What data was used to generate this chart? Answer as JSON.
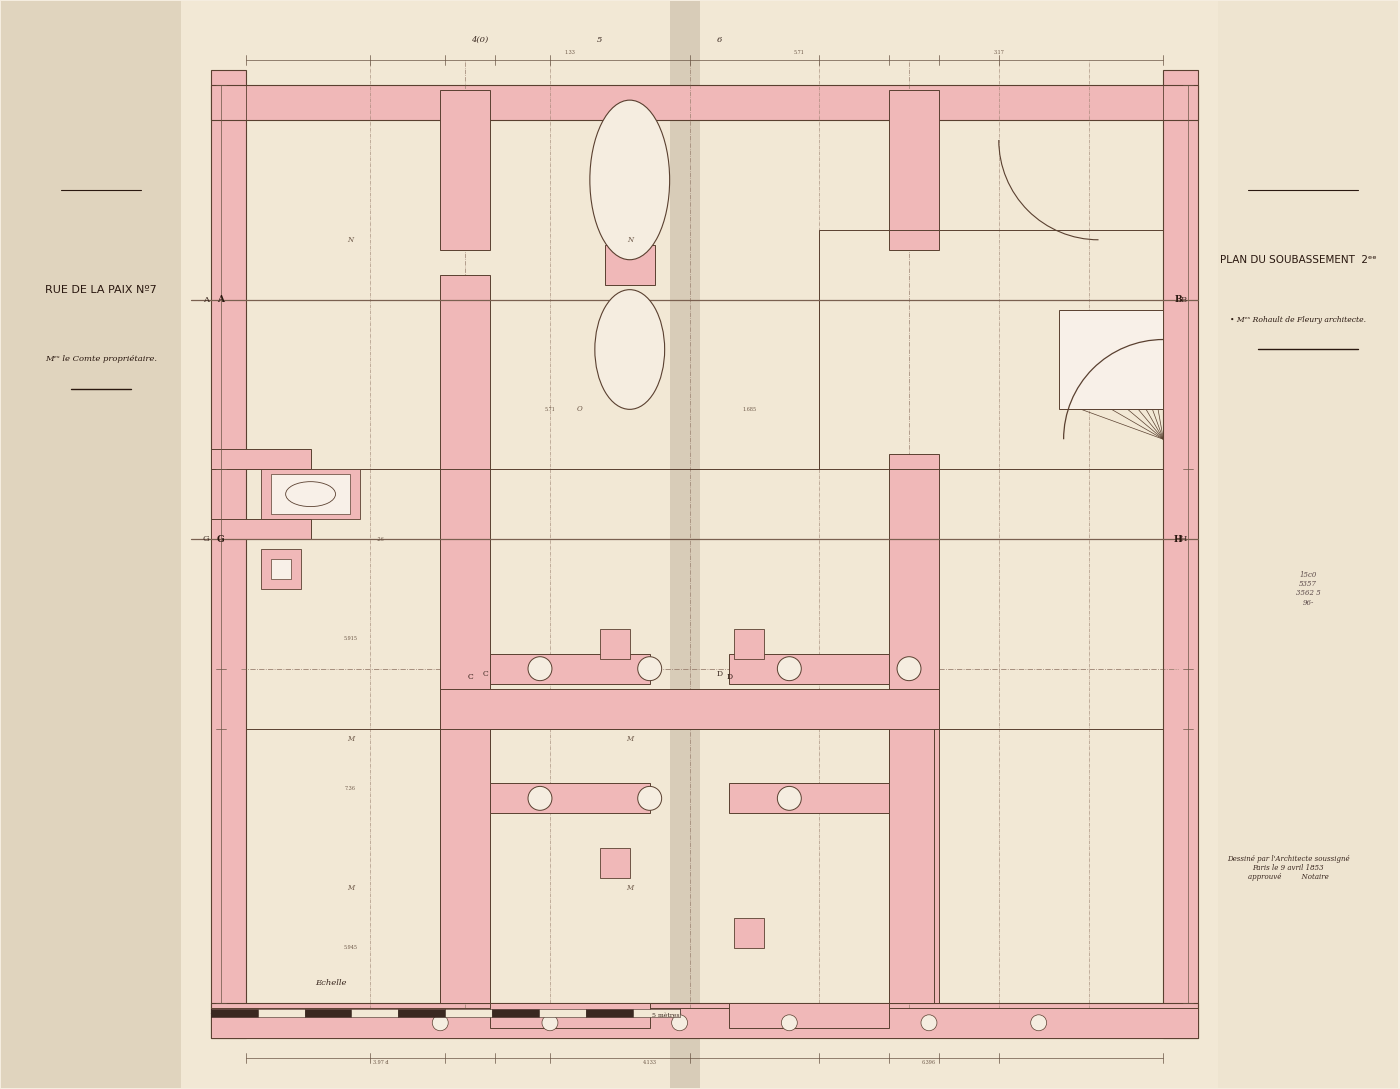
{
  "bg_color": "#f5ede0",
  "page_color": "#f0e6d3",
  "left_margin_color": "#e8dbc8",
  "pink": "#e8a0a0",
  "pink_fill": "#f0b8b8",
  "line_color": "#5a4030",
  "dim_color": "#6a5545",
  "faint_line": "#c0a898",
  "title_left_1": "RUE DE LA PAIX Nº7",
  "title_left_2": "Mᵉˢ le Comte propriétaire.",
  "title_right_1": "PLAN DU SOUBASSEMENT  2ᵉᵉ",
  "title_right_2": "• Mᵉˢ Rohault de Fleury architecte.",
  "signature_text": "Dessiné par l'Architecte soussigné\nParis le 9 avril 1853\napprouvé         Notaire",
  "echelle_text": "Echelle",
  "label_A": "A",
  "label_B": "B",
  "label_G": "G",
  "label_H": "H",
  "label_C": "C",
  "label_D": "D"
}
